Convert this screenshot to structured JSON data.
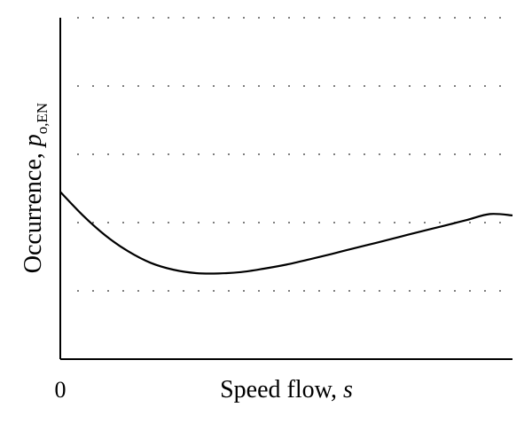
{
  "chart_data": {
    "type": "line",
    "xlabel": {
      "text": "Speed flow, ",
      "var": "s"
    },
    "ylabel": {
      "text": "Occurrence, ",
      "var": "p",
      "sub": "o,EN"
    },
    "x_tick_labels": [
      "0"
    ],
    "xlim": [
      0,
      1
    ],
    "ylim": [
      0,
      1
    ],
    "grid": {
      "y": true,
      "style": "dotted"
    },
    "y_gridlines": [
      0.2,
      0.4,
      0.6,
      0.8,
      1.0
    ],
    "series": [
      {
        "x": [
          0.0,
          0.05,
          0.1,
          0.15,
          0.2,
          0.25,
          0.3,
          0.35,
          0.4,
          0.45,
          0.5,
          0.55,
          0.6,
          0.65,
          0.7,
          0.75,
          0.8,
          0.85,
          0.9,
          0.95,
          1.0
        ],
        "values": [
          0.49,
          0.421,
          0.362,
          0.316,
          0.282,
          0.262,
          0.252,
          0.251,
          0.255,
          0.265,
          0.277,
          0.292,
          0.308,
          0.325,
          0.341,
          0.358,
          0.375,
          0.391,
          0.408,
          0.425,
          0.421
        ]
      }
    ],
    "colors": {
      "line": "#000000",
      "axis": "#000000",
      "grid": "#555555"
    }
  }
}
